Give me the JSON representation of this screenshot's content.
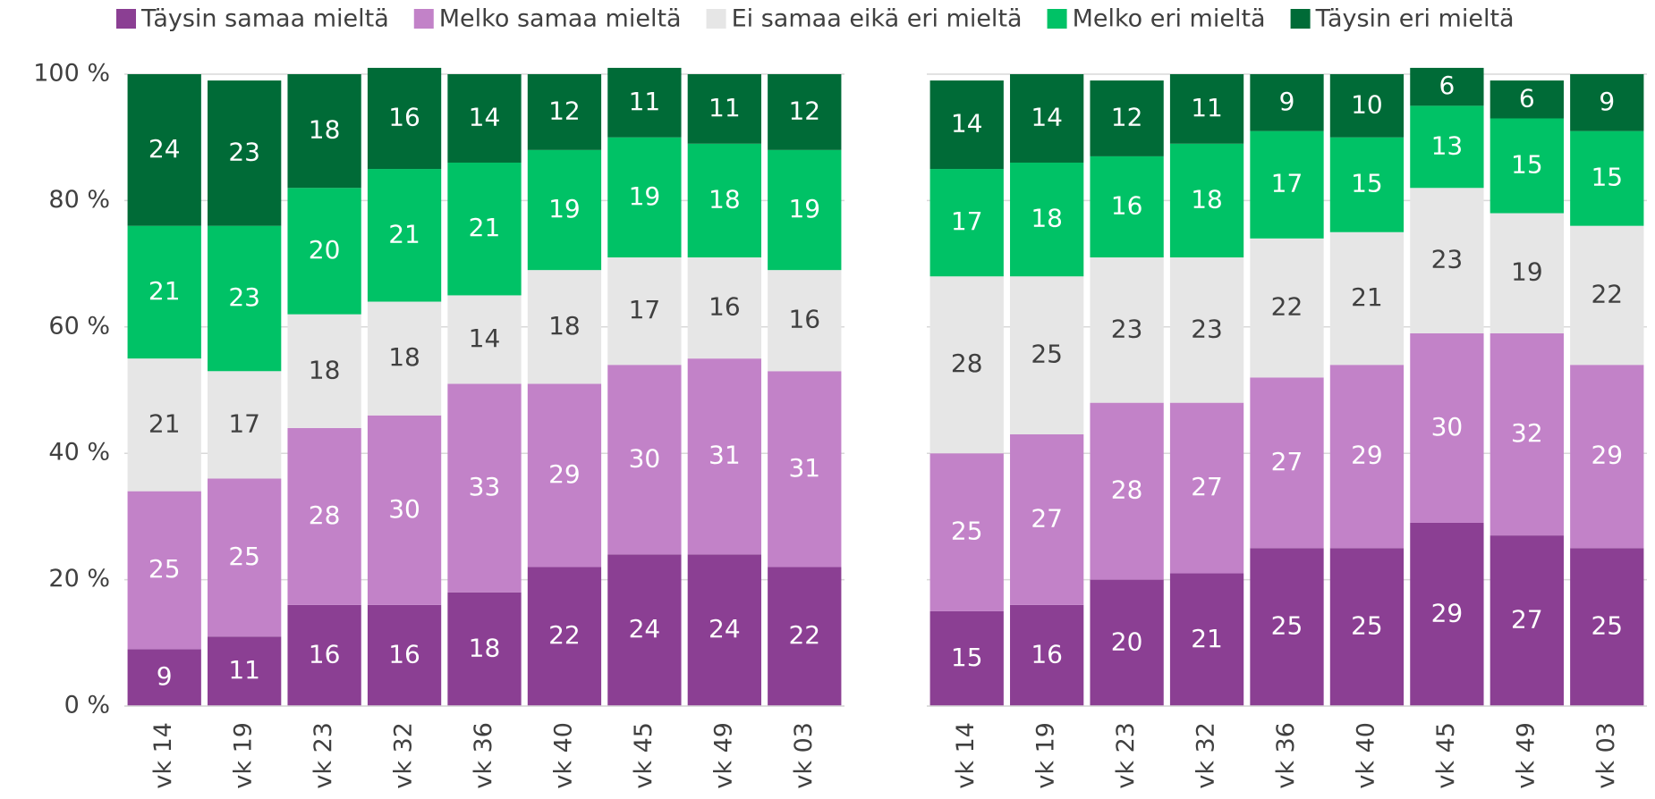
{
  "chart_data": [
    {
      "type": "bar",
      "stacked": true,
      "categories": [
        "vk 14",
        "vk 19",
        "vk 23",
        "vk 32",
        "vk 36",
        "vk 40",
        "vk 45",
        "vk 49",
        "vk 03"
      ],
      "ylim": [
        0,
        100
      ],
      "yticks": [
        {
          "value": 0,
          "label": "0 %"
        },
        {
          "value": 20,
          "label": "20 %"
        },
        {
          "value": 40,
          "label": "40 %"
        },
        {
          "value": 60,
          "label": "60 %"
        },
        {
          "value": 80,
          "label": "80 %"
        },
        {
          "value": 100,
          "label": "100 %"
        }
      ],
      "grid": true,
      "legend": "top",
      "series": [
        {
          "name": "Täysin samaa mieltä",
          "color": "#8b3f93",
          "label_color": "#ffffff",
          "values": [
            9,
            11,
            16,
            16,
            18,
            22,
            24,
            24,
            22
          ]
        },
        {
          "name": "Melko samaa mieltä",
          "color": "#c282c8",
          "label_color": "#ffffff",
          "values": [
            25,
            25,
            28,
            30,
            33,
            29,
            30,
            31,
            31
          ]
        },
        {
          "name": "Ei samaa eikä eri mieltä",
          "color": "#e6e6e6",
          "label_color": "#404040",
          "values": [
            21,
            17,
            18,
            18,
            14,
            18,
            17,
            16,
            16
          ]
        },
        {
          "name": "Melko eri mieltä",
          "color": "#00c266",
          "label_color": "#ffffff",
          "values": [
            21,
            23,
            20,
            21,
            21,
            19,
            19,
            18,
            19
          ]
        },
        {
          "name": "Täysin eri mieltä",
          "color": "#006b37",
          "label_color": "#ffffff",
          "values": [
            24,
            23,
            18,
            16,
            14,
            12,
            11,
            11,
            12
          ]
        }
      ]
    },
    {
      "type": "bar",
      "stacked": true,
      "categories": [
        "vk 14",
        "vk 19",
        "vk 23",
        "vk 32",
        "vk 36",
        "vk 40",
        "vk 45",
        "vk 49",
        "vk 03"
      ],
      "ylim": [
        0,
        100
      ],
      "grid": true,
      "series": [
        {
          "values": [
            15,
            16,
            20,
            21,
            25,
            25,
            29,
            27,
            25
          ]
        },
        {
          "values": [
            25,
            27,
            28,
            27,
            27,
            29,
            30,
            32,
            29
          ]
        },
        {
          "values": [
            28,
            25,
            23,
            23,
            22,
            21,
            23,
            19,
            22
          ]
        },
        {
          "values": [
            17,
            18,
            16,
            18,
            17,
            15,
            13,
            15,
            15
          ]
        },
        {
          "values": [
            14,
            14,
            12,
            11,
            9,
            10,
            6,
            6,
            9
          ]
        }
      ]
    }
  ]
}
